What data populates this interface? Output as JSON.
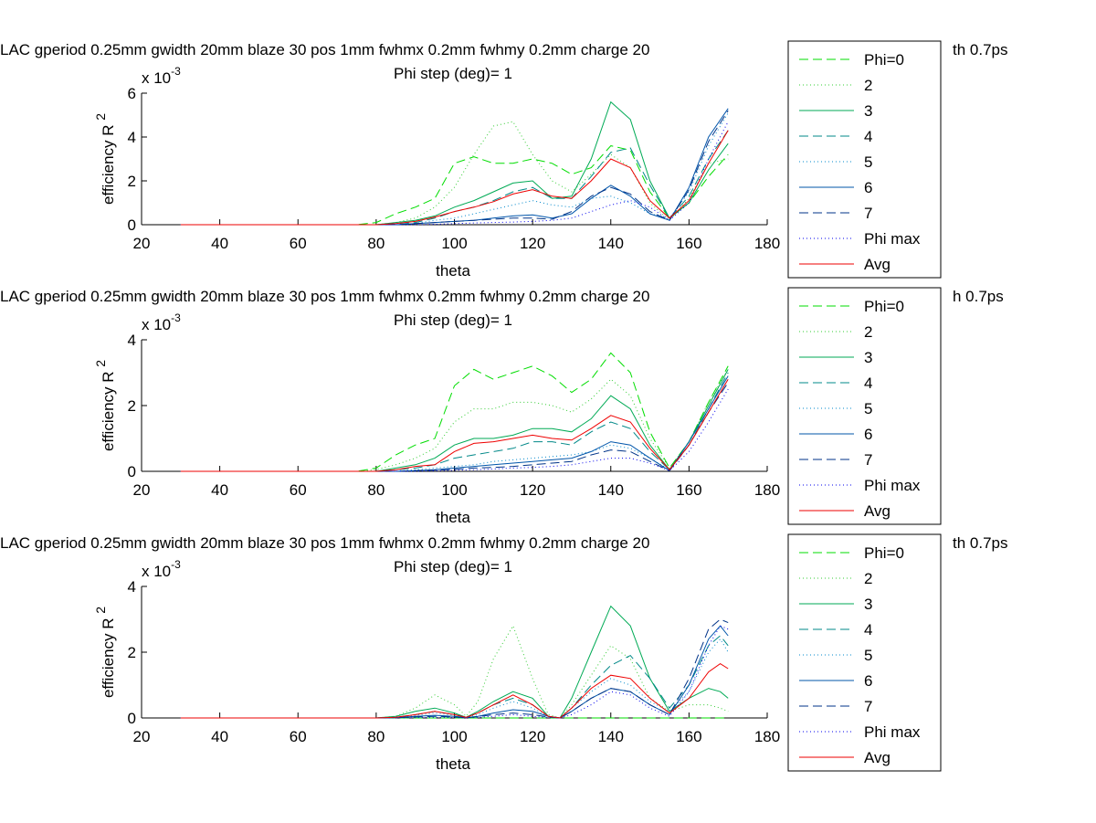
{
  "figure": {
    "background": "#ffffff"
  },
  "legend_entries": [
    {
      "label": "Phi=0",
      "color": "#00dd00",
      "dash": "10,5"
    },
    {
      "label": "2",
      "color": "#33cc33",
      "dash": "1,3"
    },
    {
      "label": "3",
      "color": "#00aa55",
      "dash": ""
    },
    {
      "label": "4",
      "color": "#008888",
      "dash": "10,5"
    },
    {
      "label": "5",
      "color": "#0088cc",
      "dash": "1,3"
    },
    {
      "label": "6",
      "color": "#0055aa",
      "dash": ""
    },
    {
      "label": "7",
      "color": "#003388",
      "dash": "10,5"
    },
    {
      "label": "Phi max",
      "color": "#0000ee",
      "dash": "1,3"
    },
    {
      "label": "Avg",
      "color": "#ee0000",
      "dash": ""
    }
  ],
  "chart_data": [
    {
      "type": "line",
      "title": "LAC gperiod 0.25mm gwidth 20mm blaze 30 pos 1mm fwhmx 0.2mm fwhmy 0.2mm charge 20",
      "title_tail": "th 0.7ps",
      "subtitle": "Phi step (deg)= 1",
      "xlabel": "theta",
      "ylabel": "efficiency R",
      "ylabel_sup": "2",
      "y_exponent": "x 10",
      "y_exponent_sup": "-3",
      "xlim": [
        20,
        180
      ],
      "ylim": [
        0,
        6
      ],
      "xticks": [
        20,
        40,
        60,
        80,
        100,
        120,
        140,
        160,
        180
      ],
      "yticks": [
        0,
        2,
        4,
        6
      ],
      "x": [
        30,
        75,
        80,
        85,
        90,
        95,
        100,
        105,
        110,
        115,
        120,
        125,
        130,
        135,
        140,
        145,
        150,
        155,
        160,
        165,
        170
      ],
      "series": [
        {
          "name": "Phi=0",
          "values": [
            0,
            0,
            0.1,
            0.5,
            0.8,
            1.2,
            2.8,
            3.1,
            2.8,
            2.8,
            3.0,
            2.8,
            2.3,
            2.6,
            3.6,
            3.4,
            1.5,
            0.3,
            1.0,
            2.2,
            3.2
          ]
        },
        {
          "name": "2",
          "values": [
            0,
            0,
            0,
            0.1,
            0.3,
            0.8,
            1.7,
            3.2,
            4.5,
            4.7,
            3.2,
            2.0,
            1.5,
            2.3,
            3.2,
            2.6,
            1.0,
            0.2,
            1.2,
            2.8,
            3.0
          ]
        },
        {
          "name": "3",
          "values": [
            0,
            0,
            0,
            0.1,
            0.2,
            0.4,
            0.8,
            1.1,
            1.5,
            1.9,
            2.0,
            1.2,
            1.3,
            3.0,
            5.6,
            4.8,
            2.0,
            0.3,
            1.0,
            2.5,
            3.7
          ]
        },
        {
          "name": "4",
          "values": [
            0,
            0,
            0,
            0.05,
            0.1,
            0.3,
            0.6,
            0.8,
            1.1,
            1.5,
            1.7,
            1.2,
            1.2,
            2.2,
            3.3,
            3.5,
            1.8,
            0.3,
            1.3,
            3.0,
            4.3
          ]
        },
        {
          "name": "5",
          "values": [
            0,
            0,
            0,
            0,
            0.05,
            0.2,
            0.3,
            0.5,
            0.7,
            0.9,
            1.1,
            0.9,
            0.8,
            1.2,
            1.3,
            1.0,
            0.5,
            0.3,
            1.5,
            3.6,
            5.1
          ]
        },
        {
          "name": "6",
          "values": [
            0,
            0,
            0,
            0,
            0.05,
            0.1,
            0.15,
            0.2,
            0.3,
            0.4,
            0.45,
            0.3,
            0.5,
            1.2,
            1.8,
            1.3,
            0.5,
            0.2,
            1.7,
            4.0,
            5.3
          ]
        },
        {
          "name": "7",
          "values": [
            0,
            0,
            0,
            0,
            0.05,
            0.1,
            0.15,
            0.2,
            0.25,
            0.3,
            0.3,
            0.25,
            0.6,
            1.3,
            1.7,
            1.4,
            0.6,
            0.2,
            1.6,
            3.8,
            5.2
          ]
        },
        {
          "name": "Phi max",
          "values": [
            0,
            0,
            0,
            0,
            0,
            0.02,
            0.05,
            0.08,
            0.1,
            0.12,
            0.15,
            0.2,
            0.3,
            0.6,
            0.9,
            1.1,
            0.8,
            0.2,
            1.0,
            3.0,
            4.7
          ]
        },
        {
          "name": "Avg",
          "values": [
            0,
            0,
            0,
            0.05,
            0.15,
            0.35,
            0.6,
            0.8,
            1.05,
            1.4,
            1.6,
            1.3,
            1.2,
            2.0,
            3.0,
            2.6,
            1.1,
            0.3,
            1.1,
            2.8,
            4.3
          ]
        }
      ]
    },
    {
      "type": "line",
      "title": "LAC gperiod 0.25mm gwidth 20mm blaze 30 pos 1mm fwhmx 0.2mm fwhmy 0.2mm charge 20",
      "title_tail": "h 0.7ps",
      "subtitle": "Phi step (deg)= 1",
      "xlabel": "theta",
      "ylabel": "efficiency R",
      "ylabel_sup": "2",
      "y_exponent": "x 10",
      "y_exponent_sup": "-3",
      "xlim": [
        20,
        180
      ],
      "ylim": [
        0,
        4
      ],
      "xticks": [
        20,
        40,
        60,
        80,
        100,
        120,
        140,
        160,
        180
      ],
      "yticks": [
        0,
        2,
        4
      ],
      "x": [
        30,
        75,
        80,
        85,
        90,
        95,
        100,
        105,
        110,
        115,
        120,
        125,
        130,
        135,
        140,
        145,
        150,
        155,
        160,
        165,
        170
      ],
      "series": [
        {
          "name": "Phi=0",
          "values": [
            0,
            0,
            0.1,
            0.5,
            0.8,
            1.0,
            2.6,
            3.1,
            2.8,
            3.0,
            3.2,
            2.9,
            2.4,
            2.8,
            3.6,
            3.0,
            1.2,
            0.1,
            0.9,
            2.1,
            3.2
          ]
        },
        {
          "name": "2",
          "values": [
            0,
            0,
            0.05,
            0.2,
            0.4,
            0.7,
            1.5,
            1.9,
            1.9,
            2.1,
            2.1,
            2.0,
            1.8,
            2.2,
            2.8,
            2.3,
            1.0,
            0.1,
            0.9,
            2.1,
            3.1
          ]
        },
        {
          "name": "3",
          "values": [
            0,
            0,
            0,
            0.1,
            0.2,
            0.4,
            0.8,
            1.0,
            1.0,
            1.1,
            1.3,
            1.3,
            1.2,
            1.6,
            2.3,
            1.9,
            0.8,
            0.05,
            0.9,
            2.0,
            3.1
          ]
        },
        {
          "name": "4",
          "values": [
            0,
            0,
            0,
            0.05,
            0.1,
            0.2,
            0.4,
            0.5,
            0.6,
            0.7,
            0.9,
            0.9,
            0.8,
            1.2,
            1.5,
            1.3,
            0.6,
            0.05,
            0.8,
            1.9,
            3.0
          ]
        },
        {
          "name": "5",
          "values": [
            0,
            0,
            0,
            0,
            0.05,
            0.1,
            0.15,
            0.2,
            0.3,
            0.35,
            0.4,
            0.45,
            0.5,
            0.6,
            0.8,
            0.7,
            0.4,
            0.05,
            0.8,
            1.8,
            2.8
          ]
        },
        {
          "name": "6",
          "values": [
            0,
            0,
            0,
            0,
            0.02,
            0.05,
            0.1,
            0.15,
            0.2,
            0.25,
            0.3,
            0.35,
            0.4,
            0.6,
            0.9,
            0.8,
            0.4,
            0.02,
            0.9,
            1.9,
            2.9
          ]
        },
        {
          "name": "7",
          "values": [
            0,
            0,
            0,
            0,
            0.02,
            0.04,
            0.06,
            0.1,
            0.12,
            0.15,
            0.2,
            0.25,
            0.3,
            0.5,
            0.65,
            0.6,
            0.3,
            0.02,
            0.8,
            1.8,
            2.7
          ]
        },
        {
          "name": "Phi max",
          "values": [
            0,
            0,
            0,
            0,
            0,
            0.02,
            0.03,
            0.05,
            0.07,
            0.1,
            0.12,
            0.15,
            0.2,
            0.3,
            0.4,
            0.4,
            0.25,
            0.02,
            0.6,
            1.5,
            2.5
          ]
        },
        {
          "name": "Avg",
          "values": [
            0,
            0,
            0,
            0.05,
            0.15,
            0.2,
            0.6,
            0.85,
            0.9,
            1.0,
            1.1,
            1.0,
            0.95,
            1.3,
            1.7,
            1.5,
            0.7,
            0.05,
            0.8,
            1.8,
            2.8
          ]
        }
      ]
    },
    {
      "type": "line",
      "title": "LAC gperiod 0.25mm gwidth 20mm blaze 30 pos 1mm fwhmx 0.2mm fwhmy 0.2mm charge 20",
      "title_tail": "th 0.7ps",
      "subtitle": "Phi step (deg)= 1",
      "xlabel": "theta",
      "ylabel": "efficiency R",
      "ylabel_sup": "2",
      "y_exponent": "x 10",
      "y_exponent_sup": "-3",
      "xlim": [
        20,
        180
      ],
      "ylim": [
        0,
        4
      ],
      "xticks": [
        20,
        40,
        60,
        80,
        100,
        120,
        140,
        160,
        180
      ],
      "yticks": [
        0,
        2,
        4
      ],
      "x": [
        30,
        80,
        85,
        90,
        95,
        100,
        103,
        106,
        110,
        115,
        120,
        124,
        127,
        130,
        135,
        140,
        145,
        150,
        155,
        160,
        165,
        168,
        170
      ],
      "series": [
        {
          "name": "Phi=0",
          "values": [
            0,
            0,
            0,
            0,
            0,
            0,
            0,
            0,
            0,
            0,
            0,
            0,
            0,
            0,
            0,
            0,
            0,
            0,
            0,
            0,
            0,
            0,
            0
          ]
        },
        {
          "name": "2",
          "values": [
            0,
            0,
            0.05,
            0.3,
            0.7,
            0.4,
            0.05,
            0.5,
            1.8,
            2.8,
            1.2,
            0.1,
            0,
            0.4,
            1.3,
            2.2,
            1.8,
            0.6,
            0.2,
            0.4,
            0.4,
            0.3,
            0.2
          ]
        },
        {
          "name": "3",
          "values": [
            0,
            0,
            0.05,
            0.2,
            0.3,
            0.15,
            0.02,
            0.2,
            0.5,
            0.8,
            0.6,
            0.05,
            0,
            0.6,
            2.0,
            3.4,
            2.8,
            1.2,
            0.2,
            0.6,
            0.9,
            0.8,
            0.6
          ]
        },
        {
          "name": "4",
          "values": [
            0,
            0,
            0.02,
            0.1,
            0.2,
            0.1,
            0.02,
            0.15,
            0.4,
            0.6,
            0.4,
            0.05,
            0,
            0.3,
            1.0,
            1.6,
            1.9,
            1.2,
            0.3,
            1.0,
            2.2,
            2.5,
            2.2
          ]
        },
        {
          "name": "5",
          "values": [
            0,
            0,
            0.02,
            0.08,
            0.15,
            0.08,
            0.02,
            0.1,
            0.3,
            0.5,
            0.3,
            0.05,
            0,
            0.3,
            0.8,
            1.2,
            1.0,
            0.5,
            0.2,
            0.8,
            2.0,
            2.4,
            2.0
          ]
        },
        {
          "name": "6",
          "values": [
            0,
            0,
            0.01,
            0.05,
            0.08,
            0.05,
            0.01,
            0.05,
            0.15,
            0.25,
            0.2,
            0.05,
            0,
            0.2,
            0.6,
            0.9,
            0.8,
            0.4,
            0.1,
            1.0,
            2.4,
            2.8,
            2.5
          ]
        },
        {
          "name": "7",
          "values": [
            0,
            0,
            0.01,
            0.03,
            0.05,
            0.03,
            0.01,
            0.04,
            0.1,
            0.15,
            0.1,
            0.03,
            0,
            0.2,
            0.6,
            0.9,
            0.8,
            0.4,
            0.1,
            1.2,
            2.7,
            3.0,
            2.9
          ]
        },
        {
          "name": "Phi max",
          "values": [
            0,
            0,
            0,
            0.01,
            0.02,
            0.01,
            0,
            0.02,
            0.05,
            0.1,
            0.05,
            0.01,
            0,
            0.1,
            0.4,
            0.8,
            0.7,
            0.3,
            0.05,
            0.8,
            2.2,
            2.8,
            2.7
          ]
        },
        {
          "name": "Avg",
          "values": [
            0,
            0,
            0.02,
            0.1,
            0.2,
            0.1,
            0.02,
            0.15,
            0.4,
            0.7,
            0.4,
            0.05,
            0,
            0.3,
            0.9,
            1.3,
            1.2,
            0.6,
            0.15,
            0.6,
            1.4,
            1.65,
            1.5
          ]
        }
      ]
    }
  ]
}
